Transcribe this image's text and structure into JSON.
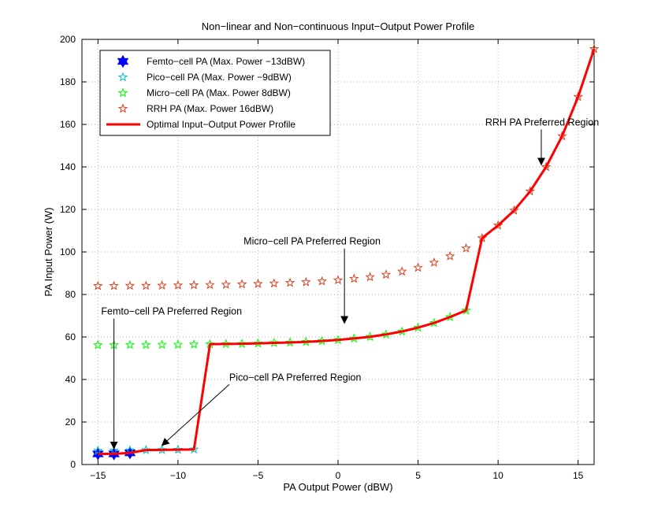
{
  "chart_data": {
    "type": "scatter",
    "title": "Non−linear and Non−continuous Input−Output Power Profile",
    "xlabel": "PA Output Power (dBW)",
    "ylabel": "PA Input Power (W)",
    "xlim": [
      -16,
      16
    ],
    "ylim": [
      0,
      200
    ],
    "xticks": [
      -15,
      -10,
      -5,
      0,
      5,
      10,
      15
    ],
    "xtick_labels": [
      "−15",
      "−10",
      "−5",
      "0",
      "5",
      "10",
      "15"
    ],
    "yticks": [
      0,
      20,
      40,
      60,
      80,
      100,
      120,
      140,
      160,
      180,
      200
    ],
    "ytick_labels": [
      "0",
      "20",
      "40",
      "60",
      "80",
      "100",
      "120",
      "140",
      "160",
      "180",
      "200"
    ],
    "grid": true,
    "legend_position": "top-left",
    "series": [
      {
        "name": "Femto−cell PA (Max. Power −13dBW)",
        "marker": "hexagram",
        "color": "#0000ff",
        "x": [
          -15,
          -14,
          -13
        ],
        "y": [
          5,
          5,
          5.5
        ]
      },
      {
        "name": "Pico−cell PA (Max. Power −9dBW)",
        "marker": "pentagram",
        "color": "#00bfbf",
        "x": [
          -15,
          -14,
          -13,
          -12,
          -11,
          -10,
          -9
        ],
        "y": [
          6.5,
          6.6,
          6.7,
          6.8,
          6.9,
          7.0,
          7.1
        ]
      },
      {
        "name": "Micro−cell PA (Max. Power 8dBW)",
        "marker": "pentagram",
        "color": "#00ff00",
        "x": [
          -15,
          -14,
          -13,
          -12,
          -11,
          -10,
          -9,
          -8,
          -7,
          -6,
          -5,
          -4,
          -3,
          -2,
          -1,
          0,
          1,
          2,
          3,
          4,
          5,
          6,
          7,
          8
        ],
        "y": [
          56.2,
          56.2,
          56.3,
          56.3,
          56.4,
          56.4,
          56.5,
          56.6,
          56.7,
          56.8,
          57.0,
          57.2,
          57.4,
          57.7,
          58.1,
          58.6,
          59.3,
          60.1,
          61.2,
          62.6,
          64.4,
          66.6,
          69.4,
          72.5
        ]
      },
      {
        "name": "RRH PA (Max. Power 16dBW)",
        "marker": "pentagram",
        "color": "#d94020",
        "x": [
          -15,
          -14,
          -13,
          -12,
          -11,
          -10,
          -9,
          -8,
          -7,
          -6,
          -5,
          -4,
          -3,
          -2,
          -1,
          0,
          1,
          2,
          3,
          4,
          5,
          6,
          7,
          8,
          9,
          10,
          11,
          12,
          13,
          14,
          15,
          16
        ],
        "y": [
          84.0,
          84.0,
          84.1,
          84.1,
          84.2,
          84.3,
          84.4,
          84.5,
          84.6,
          84.8,
          85.0,
          85.2,
          85.5,
          85.8,
          86.2,
          86.7,
          87.4,
          88.2,
          89.3,
          90.8,
          92.6,
          95.0,
          98.0,
          101.7,
          106.5,
          112.5,
          119.5,
          128.5,
          140.0,
          154.5,
          173.0,
          195.5
        ]
      },
      {
        "name": "Optimal Input−Output Power Profile",
        "marker": "line",
        "color": "#ff0000",
        "x": [
          -15,
          -14,
          -13,
          -12,
          -11,
          -10,
          -9,
          -8,
          -7,
          -6,
          -5,
          -4,
          -3,
          -2,
          -1,
          0,
          1,
          2,
          3,
          4,
          5,
          6,
          7,
          8,
          9,
          10,
          11,
          12,
          13,
          14,
          15,
          16
        ],
        "y": [
          5,
          5,
          5.5,
          6.8,
          6.9,
          7.0,
          7.1,
          56.6,
          56.7,
          56.8,
          57.0,
          57.2,
          57.4,
          57.7,
          58.1,
          58.6,
          59.3,
          60.1,
          61.2,
          62.6,
          64.4,
          66.6,
          69.4,
          72.5,
          106.5,
          112.5,
          119.5,
          128.5,
          140.0,
          154.5,
          173.0,
          195.5
        ]
      }
    ],
    "annotations": [
      {
        "text": "RRH PA Preferred Region",
        "text_at": [
          9.2,
          159.5
        ],
        "arrow_to": [
          12.7,
          141
        ]
      },
      {
        "text": "Micro−cell PA Preferred Region",
        "text_at": [
          -5.9,
          103.5
        ],
        "arrow_to": [
          0.4,
          66.5
        ]
      },
      {
        "text": "Femto−cell PA Preferred Region",
        "text_at": [
          -14.8,
          70.5
        ],
        "arrow_to": [
          -14,
          7.5
        ]
      },
      {
        "text": "Pico−cell PA Preferred Region",
        "text_at": [
          -6.8,
          39.5
        ],
        "arrow_to": [
          -11,
          9
        ]
      }
    ]
  }
}
